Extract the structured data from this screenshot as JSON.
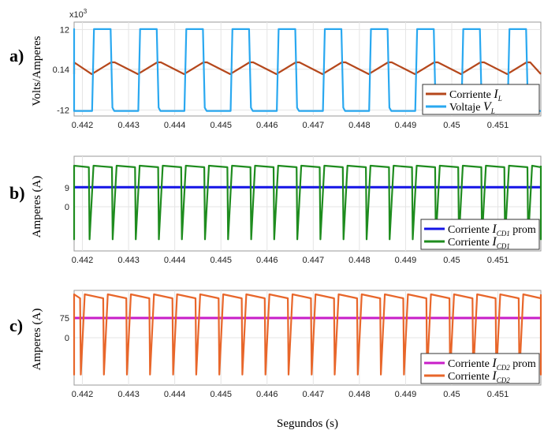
{
  "xlabel": "Segundos (s)",
  "chart_data": [
    {
      "id": "a",
      "panel_label": "a)",
      "type": "line",
      "ylabel": "Volts/Amperes",
      "exponent_label": "x10",
      "exponent_power": "3",
      "xlim": [
        0.44182,
        0.45193
      ],
      "ylim": [
        -13.8,
        14.2
      ],
      "x_ticks": [
        0.442,
        0.443,
        0.444,
        0.445,
        0.446,
        0.447,
        0.448,
        0.449,
        0.45,
        0.451
      ],
      "x_tick_labels": [
        "0.442",
        "0.443",
        "0.444",
        "0.445",
        "0.446",
        "0.447",
        "0.448",
        "0.449",
        "0.45",
        "0.451"
      ],
      "y_ticks": [
        12,
        0.14,
        -12
      ],
      "y_tick_labels": [
        "12",
        "0.14",
        "-12"
      ],
      "wave_period": 0.001,
      "legend_position": "bottom-right",
      "series": [
        {
          "name": "Corriente",
          "name_italic": "I",
          "name_sub": "L",
          "color": "#b5471b",
          "kind": "triangle",
          "min": -1.3,
          "max": 2.2,
          "rise_start": 0.4422,
          "rise_end": 0.4427
        },
        {
          "name": "Voltaje",
          "name_italic": "V",
          "name_sub": "L",
          "color": "#29a8f0",
          "kind": "square",
          "high": 12.1,
          "low": -12.3,
          "high_start": 0.44225,
          "high_end": 0.44265
        }
      ]
    },
    {
      "id": "b",
      "panel_label": "b)",
      "type": "line",
      "ylabel": "Amperes (A)",
      "xlim": [
        0.44182,
        0.45193
      ],
      "ylim": [
        -21,
        24
      ],
      "x_ticks": [
        0.442,
        0.443,
        0.444,
        0.445,
        0.446,
        0.447,
        0.448,
        0.449,
        0.45,
        0.451
      ],
      "x_tick_labels": [
        "0.442",
        "0.443",
        "0.444",
        "0.445",
        "0.446",
        "0.447",
        "0.448",
        "0.449",
        "0.45",
        "0.451"
      ],
      "y_ticks": [
        9,
        0
      ],
      "y_tick_labels": [
        "9",
        "0"
      ],
      "wave_period": 0.0005,
      "legend_position": "bottom-right",
      "series": [
        {
          "name": "Corriente",
          "name_italic": "I",
          "name_sub": "CD1",
          "name_suffix": " prom",
          "color": "#1414e6",
          "kind": "constant",
          "value": 9.3
        },
        {
          "name": "Corriente",
          "name_italic": "I",
          "name_sub": "CD1",
          "name_suffix": "",
          "color": "#1e8c1e",
          "kind": "sawtooth",
          "peak": 19.5,
          "top": 18.8,
          "trough": -15.5,
          "first_drop": 0.44214
        }
      ]
    },
    {
      "id": "c",
      "panel_label": "c)",
      "type": "line",
      "ylabel": "Amperes (A)",
      "xlim": [
        0.44182,
        0.45193
      ],
      "ylim": [
        -180,
        180
      ],
      "x_ticks": [
        0.442,
        0.443,
        0.444,
        0.445,
        0.446,
        0.447,
        0.448,
        0.449,
        0.45,
        0.451
      ],
      "x_tick_labels": [
        "0.442",
        "0.443",
        "0.444",
        "0.445",
        "0.446",
        "0.447",
        "0.448",
        "0.449",
        "0.45",
        "0.451"
      ],
      "y_ticks": [
        75,
        0
      ],
      "y_tick_labels": [
        "75",
        "0"
      ],
      "wave_period": 0.0005,
      "legend_position": "bottom-right",
      "series": [
        {
          "name": "Corriente",
          "name_italic": "I",
          "name_sub": "CD2",
          "name_suffix": " prom",
          "color": "#c81ec8",
          "kind": "constant",
          "value": 75
        },
        {
          "name": "Corriente",
          "name_italic": "I",
          "name_sub": "CD2",
          "name_suffix": "",
          "color": "#e8662a",
          "kind": "sawtooth",
          "peak": 165,
          "top": 150,
          "trough": -140,
          "first_drop": 0.44195
        }
      ]
    }
  ]
}
